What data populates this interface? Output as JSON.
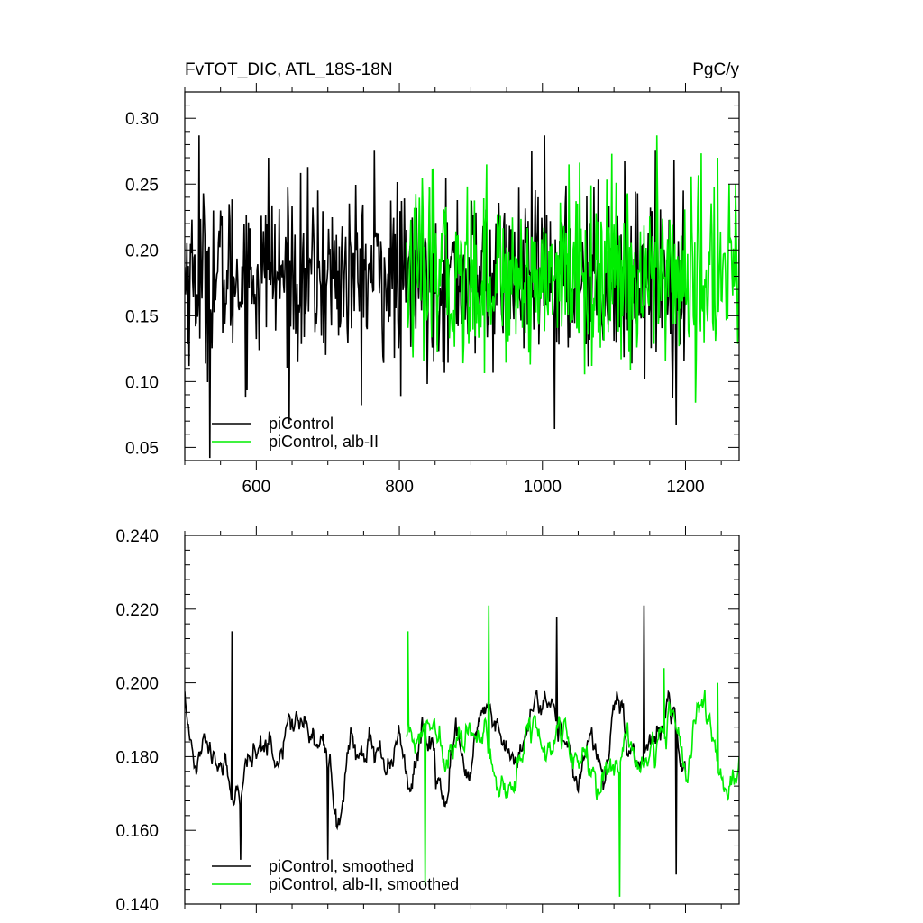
{
  "figure": {
    "title_left": "FvTOT_DIC, ATL_18S-18N",
    "title_right": "PgC/y"
  },
  "colors": {
    "piControl": "#000000",
    "alb_II": "#00ee00",
    "axis": "#000000",
    "background": "#ffffff"
  },
  "chart_data": [
    {
      "type": "line",
      "xlim": [
        500,
        1275
      ],
      "ylim": [
        0.04,
        0.32
      ],
      "xticks": [
        600,
        800,
        1000,
        1200
      ],
      "xtick_labels": [
        "600",
        "800",
        "1000",
        "1200"
      ],
      "yticks": [
        0.05,
        0.1,
        0.15,
        0.2,
        0.25,
        0.3
      ],
      "ytick_labels": [
        "0.05",
        "0.10",
        "0.15",
        "0.20",
        "0.25",
        "0.30"
      ],
      "legend_position": "bottom-left",
      "grid": false,
      "series": [
        {
          "name": "piControl",
          "color": "#000000",
          "x_start": 500,
          "x_end": 1200,
          "step": 1,
          "mean": 0.18,
          "std": 0.032,
          "peaks": [
            [
              520,
              0.287
            ],
            [
              535,
              0.042
            ],
            [
              583,
              0.22
            ],
            [
              617,
              0.27
            ],
            [
              765,
              0.276
            ],
            [
              802,
              0.089
            ],
            [
              1003,
              0.287
            ],
            [
              1017,
              0.064
            ],
            [
              1187,
              0.067
            ]
          ]
        },
        {
          "name": "piControl, alb-II",
          "color": "#00ee00",
          "x_start": 810,
          "x_end": 1275,
          "step": 1,
          "mean": 0.18,
          "std": 0.032,
          "peaks": [
            [
              848,
              0.262
            ],
            [
              922,
              0.265
            ],
            [
              1037,
              0.265
            ],
            [
              1160,
              0.287
            ],
            [
              1245,
              0.27
            ],
            [
              1214,
              0.084
            ],
            [
              1270,
              0.25
            ]
          ]
        }
      ]
    },
    {
      "type": "line",
      "xlim": [
        500,
        1275
      ],
      "ylim": [
        0.14,
        0.24
      ],
      "xticks": [
        600,
        800,
        1000,
        1200
      ],
      "xtick_labels": [],
      "yticks": [
        0.14,
        0.16,
        0.18,
        0.2,
        0.22,
        0.24
      ],
      "ytick_labels": [
        "0.140",
        "0.160",
        "0.180",
        "0.200",
        "0.220",
        "0.240"
      ],
      "legend_position": "bottom-left",
      "grid": false,
      "series": [
        {
          "name": "piControl, smoothed",
          "color": "#000000",
          "x_start": 500,
          "x_end": 1200,
          "step": 1,
          "mean": 0.182,
          "std": 0.011,
          "peaks": [
            [
              566,
              0.214
            ],
            [
              578,
              0.152
            ],
            [
              700,
              0.152
            ],
            [
              1020,
              0.218
            ],
            [
              1142,
              0.221
            ],
            [
              1187,
              0.148
            ]
          ]
        },
        {
          "name": "piControl, alb-II, smoothed",
          "color": "#00ee00",
          "x_start": 810,
          "x_end": 1275,
          "step": 1,
          "mean": 0.182,
          "std": 0.011,
          "peaks": [
            [
              812,
              0.214
            ],
            [
              836,
              0.145
            ],
            [
              925,
              0.221
            ],
            [
              1108,
              0.142
            ],
            [
              1170,
              0.204
            ],
            [
              1245,
              0.2
            ]
          ]
        }
      ]
    }
  ]
}
